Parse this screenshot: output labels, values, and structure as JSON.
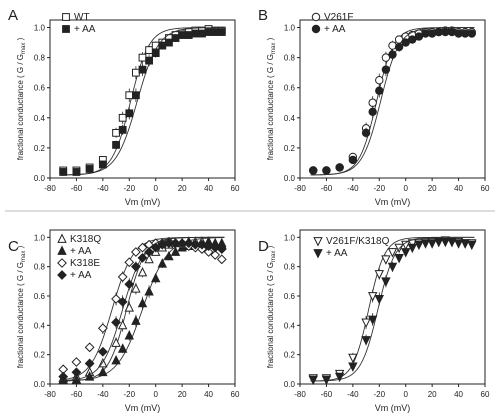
{
  "panel_common": {
    "xlabel": "Vm (mV)",
    "ylabel": "fractional conductance ( G / G",
    "ylabel_sub": "max",
    "ylabel_end": " )",
    "xlim": [
      -80,
      60
    ],
    "ylim": [
      0,
      1.05
    ],
    "xticks": [
      "-80",
      "-60",
      "-40",
      "-20",
      "0",
      "20",
      "40",
      "60"
    ],
    "yticks": [
      "0.0",
      "0.2",
      "0.4",
      "0.6",
      "0.8",
      "1.0"
    ]
  },
  "chart_data": [
    {
      "panel": "A",
      "type": "scatter",
      "legend": [
        "WT",
        "+ AA"
      ],
      "series": [
        {
          "name": "WT",
          "marker": "square-open",
          "x": [
            -70,
            -60,
            -50,
            -40,
            -30,
            -25,
            -20,
            -15,
            -10,
            -5,
            0,
            5,
            10,
            15,
            20,
            25,
            30,
            35,
            40,
            45,
            50
          ],
          "y": [
            0.05,
            0.05,
            0.07,
            0.12,
            0.3,
            0.4,
            0.55,
            0.7,
            0.8,
            0.85,
            0.88,
            0.9,
            0.93,
            0.95,
            0.96,
            0.97,
            0.98,
            0.98,
            0.99,
            0.98,
            0.98
          ],
          "fit_v50": -19,
          "fit_k": 7
        },
        {
          "name": "+ AA",
          "marker": "square-filled",
          "x": [
            -70,
            -60,
            -50,
            -40,
            -30,
            -25,
            -20,
            -15,
            -10,
            -5,
            0,
            5,
            10,
            15,
            20,
            25,
            30,
            35,
            40,
            45,
            50
          ],
          "y": [
            0.04,
            0.04,
            0.06,
            0.09,
            0.22,
            0.32,
            0.43,
            0.55,
            0.72,
            0.78,
            0.83,
            0.88,
            0.9,
            0.93,
            0.95,
            0.95,
            0.96,
            0.96,
            0.97,
            0.97,
            0.97
          ],
          "fit_v50": -14,
          "fit_k": 8
        }
      ]
    },
    {
      "panel": "B",
      "type": "scatter",
      "legend": [
        "V261F",
        "+ AA"
      ],
      "series": [
        {
          "name": "V261F",
          "marker": "circle-open",
          "x": [
            -70,
            -60,
            -50,
            -40,
            -30,
            -25,
            -20,
            -15,
            -10,
            -5,
            0,
            5,
            10,
            15,
            20,
            25,
            30,
            35,
            40,
            45,
            50
          ],
          "y": [
            0.05,
            0.05,
            0.07,
            0.14,
            0.33,
            0.5,
            0.65,
            0.8,
            0.88,
            0.92,
            0.94,
            0.95,
            0.96,
            0.97,
            0.97,
            0.97,
            0.98,
            0.98,
            0.97,
            0.97,
            0.97
          ],
          "fit_v50": -22,
          "fit_k": 6.5
        },
        {
          "name": "+ AA",
          "marker": "circle-filled",
          "x": [
            -70,
            -60,
            -50,
            -40,
            -30,
            -25,
            -20,
            -15,
            -10,
            -5,
            0,
            5,
            10,
            15,
            20,
            25,
            30,
            35,
            40,
            45,
            50
          ],
          "y": [
            0.05,
            0.05,
            0.07,
            0.12,
            0.3,
            0.44,
            0.58,
            0.72,
            0.82,
            0.87,
            0.9,
            0.92,
            0.94,
            0.96,
            0.96,
            0.97,
            0.97,
            0.97,
            0.96,
            0.96,
            0.96
          ],
          "fit_v50": -19,
          "fit_k": 7
        }
      ]
    },
    {
      "panel": "C",
      "type": "scatter",
      "legend": [
        "K318Q",
        "+ AA",
        "K318E",
        "+ AA"
      ],
      "series": [
        {
          "name": "K318Q",
          "marker": "triangle-up-open",
          "x": [
            -70,
            -60,
            -50,
            -40,
            -30,
            -25,
            -20,
            -15,
            -10,
            -5,
            0,
            5,
            10,
            15,
            20,
            25,
            30,
            35,
            40,
            45,
            50
          ],
          "y": [
            0.04,
            0.05,
            0.08,
            0.14,
            0.28,
            0.4,
            0.52,
            0.65,
            0.76,
            0.85,
            0.9,
            0.93,
            0.95,
            0.96,
            0.96,
            0.97,
            0.97,
            0.97,
            0.97,
            0.96,
            0.96
          ],
          "fit_v50": -22,
          "fit_k": 7
        },
        {
          "name": "+ AA",
          "marker": "triangle-up-filled",
          "x": [
            -70,
            -60,
            -50,
            -40,
            -30,
            -25,
            -20,
            -15,
            -10,
            -5,
            0,
            5,
            10,
            15,
            20,
            25,
            30,
            35,
            40,
            45,
            50
          ],
          "y": [
            0.03,
            0.03,
            0.05,
            0.08,
            0.16,
            0.24,
            0.33,
            0.43,
            0.55,
            0.63,
            0.72,
            0.82,
            0.87,
            0.9,
            0.93,
            0.94,
            0.95,
            0.95,
            0.96,
            0.95,
            0.95
          ],
          "fit_v50": -10,
          "fit_k": 9.5
        },
        {
          "name": "K318E",
          "marker": "diamond-open",
          "x": [
            -70,
            -60,
            -50,
            -40,
            -30,
            -25,
            -20,
            -15,
            -10,
            -5,
            0,
            5,
            10,
            15,
            20,
            25,
            30,
            35,
            40,
            45,
            50
          ],
          "y": [
            0.1,
            0.15,
            0.25,
            0.38,
            0.58,
            0.73,
            0.83,
            0.9,
            0.93,
            0.95,
            0.96,
            0.96,
            0.97,
            0.96,
            0.95,
            0.94,
            0.93,
            0.92,
            0.9,
            0.88,
            0.85
          ],
          "fit_v50": -33,
          "fit_k": 8
        },
        {
          "name": "+ AA",
          "marker": "diamond-filled",
          "x": [
            -70,
            -60,
            -50,
            -40,
            -30,
            -25,
            -20,
            -15,
            -10,
            -5,
            0,
            5,
            10,
            15,
            20,
            25,
            30,
            35,
            40,
            45,
            50
          ],
          "y": [
            0.05,
            0.08,
            0.14,
            0.22,
            0.42,
            0.56,
            0.68,
            0.8,
            0.86,
            0.9,
            0.93,
            0.95,
            0.96,
            0.96,
            0.96,
            0.96,
            0.95,
            0.95,
            0.94,
            0.93,
            0.92
          ],
          "fit_v50": -25,
          "fit_k": 8
        }
      ]
    },
    {
      "panel": "D",
      "type": "scatter",
      "legend": [
        "V261F/K318Q",
        "+ AA"
      ],
      "series": [
        {
          "name": "V261F/K318Q",
          "marker": "triangle-down-open",
          "x": [
            -70,
            -60,
            -50,
            -40,
            -30,
            -25,
            -20,
            -15,
            -10,
            -5,
            0,
            5,
            10,
            15,
            20,
            25,
            30,
            35,
            40,
            45,
            50
          ],
          "y": [
            0.04,
            0.04,
            0.07,
            0.18,
            0.42,
            0.6,
            0.75,
            0.85,
            0.9,
            0.93,
            0.95,
            0.96,
            0.96,
            0.97,
            0.97,
            0.97,
            0.98,
            0.97,
            0.97,
            0.96,
            0.96
          ],
          "fit_v50": -28,
          "fit_k": 6
        },
        {
          "name": "+ AA",
          "marker": "triangle-down-filled",
          "x": [
            -70,
            -60,
            -50,
            -40,
            -30,
            -25,
            -20,
            -15,
            -10,
            -5,
            0,
            5,
            10,
            15,
            20,
            25,
            30,
            35,
            40,
            45,
            50
          ],
          "y": [
            0.03,
            0.03,
            0.05,
            0.12,
            0.3,
            0.44,
            0.58,
            0.7,
            0.8,
            0.86,
            0.9,
            0.93,
            0.95,
            0.96,
            0.96,
            0.97,
            0.97,
            0.97,
            0.96,
            0.96,
            0.95
          ],
          "fit_v50": -21,
          "fit_k": 6.5
        }
      ]
    }
  ]
}
